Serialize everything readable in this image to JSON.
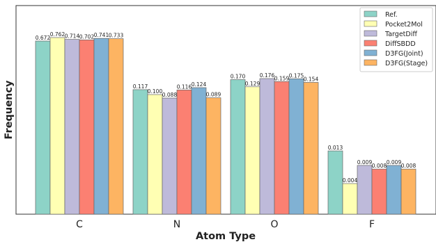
{
  "chart_data": {
    "type": "bar",
    "xlabel": "Atom Type",
    "ylabel": "Frequency",
    "categories": [
      "C",
      "N",
      "O",
      "F"
    ],
    "scale": "piecewise",
    "legend_position": "top-right",
    "grid": false,
    "series": [
      {
        "name": "Ref.",
        "color": "#8dd3c7",
        "values": [
          0.672,
          0.117,
          0.17,
          0.013
        ],
        "labels": [
          "0.672",
          "0.117",
          "0.170",
          "0.013"
        ]
      },
      {
        "name": "Pocket2Mol",
        "color": "#ffffb3",
        "values": [
          0.762,
          0.1,
          0.129,
          0.004
        ],
        "labels": [
          "0.762",
          "0.100",
          "0.129",
          "0.004"
        ]
      },
      {
        "name": "TargetDiff",
        "color": "#bebada",
        "values": [
          0.714,
          0.088,
          0.176,
          0.009
        ],
        "labels": [
          "0.714",
          "0.088",
          "0.176",
          "0.009"
        ]
      },
      {
        "name": "DiffSBDD",
        "color": "#fb8072",
        "values": [
          0.702,
          0.116,
          0.159,
          0.008
        ],
        "labels": [
          "0.702",
          "0.116",
          "0.159",
          "0.008"
        ]
      },
      {
        "name": "D3FG(Joint)",
        "color": "#80b1d3",
        "values": [
          0.741,
          0.124,
          0.175,
          0.009
        ],
        "labels": [
          "0.741",
          "0.124",
          "0.175",
          "0.009"
        ]
      },
      {
        "name": "D3FG(Stage)",
        "color": "#fdb462",
        "values": [
          0.733,
          0.089,
          0.154,
          0.008
        ],
        "labels": [
          "0.733",
          "0.089",
          "0.154",
          "0.008"
        ]
      }
    ]
  }
}
